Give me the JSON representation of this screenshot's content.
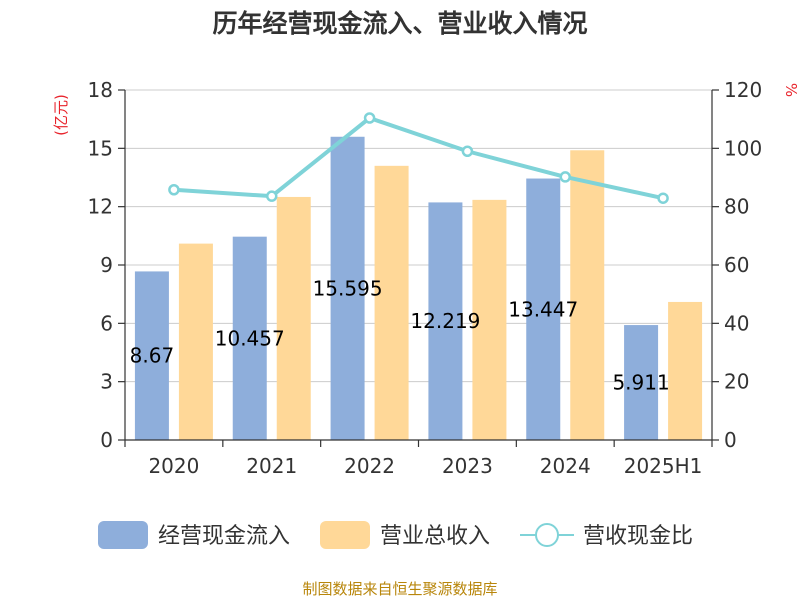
{
  "chart_data": {
    "type": "bar",
    "title": "历年经营现金流入、营业收入情况",
    "categories": [
      "2020",
      "2021",
      "2022",
      "2023",
      "2024",
      "2025H1"
    ],
    "y_left": {
      "unit": "(亿元)",
      "min": 0,
      "max": 18,
      "ticks": [
        0,
        3,
        6,
        9,
        12,
        15,
        18
      ]
    },
    "y_right": {
      "unit": "%",
      "min": 0,
      "max": 120,
      "ticks": [
        0,
        20,
        40,
        60,
        80,
        100,
        120
      ]
    },
    "series": [
      {
        "name": "经营现金流入",
        "kind": "bar",
        "axis": "left",
        "color": "#8eaedb",
        "values": [
          8.67,
          10.457,
          15.595,
          12.219,
          13.447,
          5.911
        ],
        "data_labels": [
          "8.67",
          "10.457",
          "15.595",
          "12.219",
          "13.447",
          "5.911"
        ]
      },
      {
        "name": "营业总收入",
        "kind": "bar",
        "axis": "left",
        "color": "#ffd898",
        "values": [
          10.1,
          12.5,
          14.1,
          12.35,
          14.9,
          7.1
        ]
      },
      {
        "name": "营收现金比",
        "kind": "line",
        "axis": "right",
        "color": "#7fd3d8",
        "values": [
          85.8,
          83.6,
          110.4,
          99.0,
          90.2,
          82.9
        ]
      }
    ],
    "legend_position": "bottom",
    "grid": true,
    "source": "制图数据来自恒生聚源数据库"
  }
}
